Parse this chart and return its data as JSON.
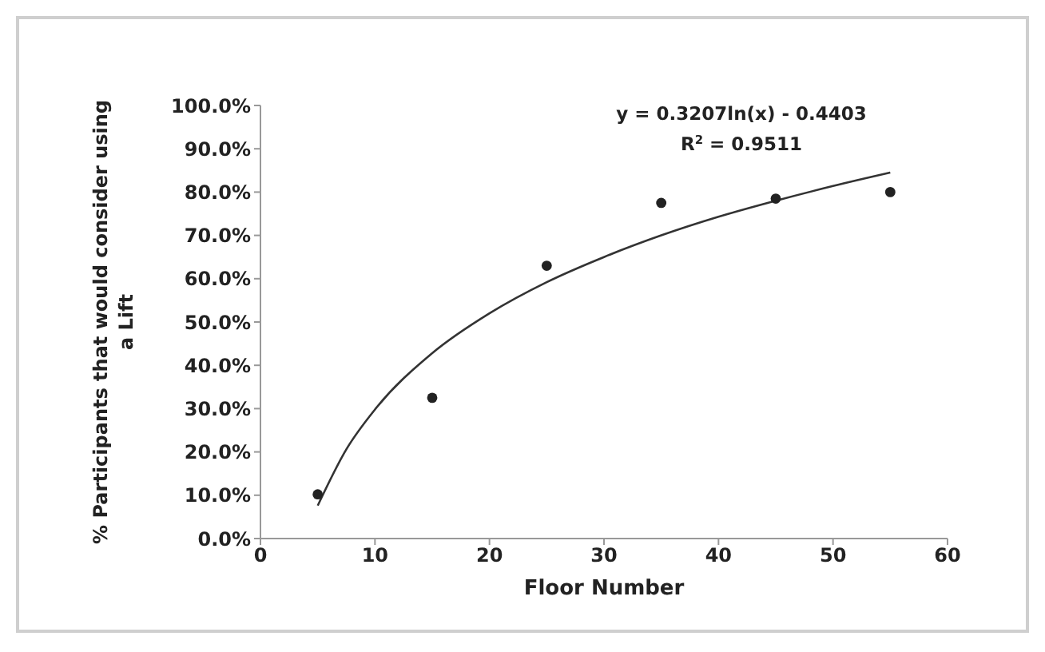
{
  "chart_data": {
    "type": "scatter",
    "xlabel": "Floor Number",
    "ylabel": "% Participants that would consider using a Lift",
    "annotations": [
      "y = 0.3207ln(x) - 0.4403",
      "R$^{2}$ = 0.9511"
    ],
    "series": [
      {
        "color": "#222222",
        "marker": "circle",
        "x": [
          5,
          15,
          25,
          35,
          45,
          55
        ],
        "values": [
          10.2,
          32.5,
          63,
          77.5,
          78.5,
          80
        ]
      },
      {
        "type": "line",
        "color": "#333333",
        "marker": "none",
        "line_style": "solid",
        "x": [
          5,
          7.5,
          10,
          15,
          20,
          25,
          30,
          35,
          40,
          45,
          50,
          55
        ],
        "values": [
          7.6,
          20.6,
          29.8,
          42.8,
          52,
          59.2,
          65,
          70,
          74.3,
          78,
          81.4,
          84.5
        ]
      }
    ],
    "xlim": [
      0,
      60
    ],
    "xticks": [
      0,
      10,
      20,
      30,
      40,
      50,
      60
    ],
    "ylim": [
      0,
      100
    ],
    "yticks": [
      {
        "value": 0,
        "label": "0.0%"
      },
      {
        "value": 10,
        "label": "10.0%"
      },
      {
        "value": 20,
        "label": "20.0%"
      },
      {
        "value": 30,
        "label": "30.0%"
      },
      {
        "value": 40,
        "label": "40.0%"
      },
      {
        "value": 50,
        "label": "50.0%"
      },
      {
        "value": 60,
        "label": "60.0%"
      },
      {
        "value": 70,
        "label": "70.0%"
      },
      {
        "value": 80,
        "label": "80.0%"
      },
      {
        "value": 90,
        "label": "90.0%"
      },
      {
        "value": 100,
        "label": "100.0%"
      }
    ],
    "grid": false
  }
}
